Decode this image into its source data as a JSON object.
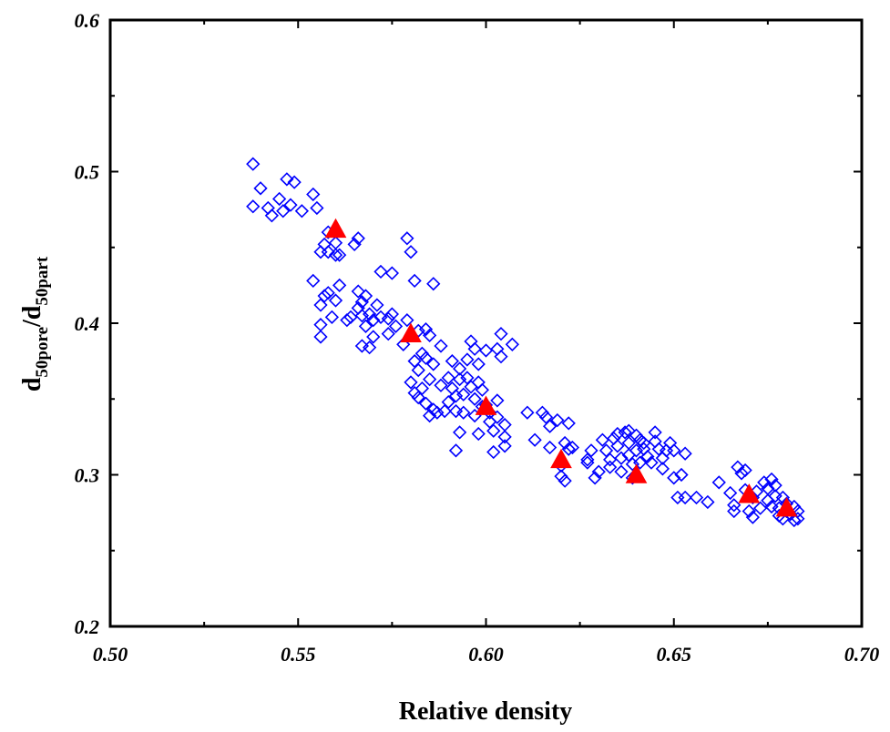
{
  "chart_data": {
    "type": "scatter",
    "xlabel": "Relative density",
    "ylabel": {
      "base1": "d",
      "sub1": "50pore",
      "sep": "/d",
      "sub2": "50part"
    },
    "xlim": [
      0.5,
      0.7
    ],
    "ylim": [
      0.2,
      0.6
    ],
    "xticks": [
      "0.50",
      "0.55",
      "0.60",
      "0.65",
      "0.70"
    ],
    "yticks": [
      "0.2",
      "0.3",
      "0.4",
      "0.5",
      "0.6"
    ],
    "grid": false,
    "series": [
      {
        "marker": "open-diamond",
        "color": "#0000ff",
        "points": [
          [
            0.538,
            0.505
          ],
          [
            0.538,
            0.477
          ],
          [
            0.54,
            0.489
          ],
          [
            0.542,
            0.476
          ],
          [
            0.543,
            0.471
          ],
          [
            0.545,
            0.482
          ],
          [
            0.546,
            0.474
          ],
          [
            0.547,
            0.495
          ],
          [
            0.548,
            0.478
          ],
          [
            0.549,
            0.493
          ],
          [
            0.551,
            0.474
          ],
          [
            0.554,
            0.485
          ],
          [
            0.555,
            0.476
          ],
          [
            0.554,
            0.428
          ],
          [
            0.556,
            0.447
          ],
          [
            0.557,
            0.452
          ],
          [
            0.558,
            0.46
          ],
          [
            0.557,
            0.418
          ],
          [
            0.556,
            0.412
          ],
          [
            0.558,
            0.42
          ],
          [
            0.559,
            0.404
          ],
          [
            0.556,
            0.399
          ],
          [
            0.556,
            0.391
          ],
          [
            0.558,
            0.447
          ],
          [
            0.56,
            0.445
          ],
          [
            0.56,
            0.453
          ],
          [
            0.561,
            0.425
          ],
          [
            0.56,
            0.415
          ],
          [
            0.561,
            0.445
          ],
          [
            0.565,
            0.452
          ],
          [
            0.566,
            0.456
          ],
          [
            0.563,
            0.402
          ],
          [
            0.564,
            0.404
          ],
          [
            0.566,
            0.421
          ],
          [
            0.567,
            0.414
          ],
          [
            0.566,
            0.41
          ],
          [
            0.568,
            0.418
          ],
          [
            0.567,
            0.405
          ],
          [
            0.569,
            0.406
          ],
          [
            0.57,
            0.402
          ],
          [
            0.568,
            0.398
          ],
          [
            0.567,
            0.385
          ],
          [
            0.569,
            0.384
          ],
          [
            0.57,
            0.391
          ],
          [
            0.572,
            0.404
          ],
          [
            0.571,
            0.412
          ],
          [
            0.572,
            0.434
          ],
          [
            0.575,
            0.433
          ],
          [
            0.574,
            0.403
          ],
          [
            0.575,
            0.406
          ],
          [
            0.576,
            0.398
          ],
          [
            0.574,
            0.393
          ],
          [
            0.578,
            0.386
          ],
          [
            0.579,
            0.456
          ],
          [
            0.58,
            0.447
          ],
          [
            0.581,
            0.428
          ],
          [
            0.579,
            0.402
          ],
          [
            0.58,
            0.392
          ],
          [
            0.582,
            0.395
          ],
          [
            0.583,
            0.38
          ],
          [
            0.581,
            0.375
          ],
          [
            0.582,
            0.369
          ],
          [
            0.58,
            0.361
          ],
          [
            0.581,
            0.354
          ],
          [
            0.582,
            0.351
          ],
          [
            0.583,
            0.357
          ],
          [
            0.584,
            0.396
          ],
          [
            0.585,
            0.392
          ],
          [
            0.586,
            0.426
          ],
          [
            0.584,
            0.377
          ],
          [
            0.586,
            0.373
          ],
          [
            0.585,
            0.363
          ],
          [
            0.584,
            0.347
          ],
          [
            0.586,
            0.343
          ],
          [
            0.587,
            0.341
          ],
          [
            0.585,
            0.339
          ],
          [
            0.588,
            0.385
          ],
          [
            0.588,
            0.359
          ],
          [
            0.589,
            0.342
          ],
          [
            0.59,
            0.364
          ],
          [
            0.59,
            0.348
          ],
          [
            0.591,
            0.375
          ],
          [
            0.591,
            0.357
          ],
          [
            0.592,
            0.352
          ],
          [
            0.592,
            0.342
          ],
          [
            0.593,
            0.37
          ],
          [
            0.593,
            0.363
          ],
          [
            0.594,
            0.353
          ],
          [
            0.593,
            0.328
          ],
          [
            0.592,
            0.316
          ],
          [
            0.594,
            0.341
          ],
          [
            0.595,
            0.376
          ],
          [
            0.595,
            0.364
          ],
          [
            0.596,
            0.388
          ],
          [
            0.597,
            0.383
          ],
          [
            0.596,
            0.358
          ],
          [
            0.597,
            0.35
          ],
          [
            0.598,
            0.373
          ],
          [
            0.598,
            0.361
          ],
          [
            0.599,
            0.356
          ],
          [
            0.597,
            0.339
          ],
          [
            0.598,
            0.327
          ],
          [
            0.599,
            0.345
          ],
          [
            0.6,
            0.382
          ],
          [
            0.6,
            0.346
          ],
          [
            0.601,
            0.341
          ],
          [
            0.601,
            0.335
          ],
          [
            0.602,
            0.329
          ],
          [
            0.602,
            0.315
          ],
          [
            0.603,
            0.349
          ],
          [
            0.603,
            0.338
          ],
          [
            0.603,
            0.383
          ],
          [
            0.604,
            0.393
          ],
          [
            0.604,
            0.378
          ],
          [
            0.605,
            0.319
          ],
          [
            0.605,
            0.325
          ],
          [
            0.605,
            0.333
          ],
          [
            0.607,
            0.386
          ],
          [
            0.611,
            0.341
          ],
          [
            0.613,
            0.323
          ],
          [
            0.615,
            0.341
          ],
          [
            0.616,
            0.338
          ],
          [
            0.617,
            0.332
          ],
          [
            0.617,
            0.318
          ],
          [
            0.619,
            0.336
          ],
          [
            0.62,
            0.299
          ],
          [
            0.62,
            0.306
          ],
          [
            0.621,
            0.296
          ],
          [
            0.621,
            0.321
          ],
          [
            0.622,
            0.317
          ],
          [
            0.622,
            0.334
          ],
          [
            0.623,
            0.318
          ],
          [
            0.627,
            0.31
          ],
          [
            0.627,
            0.308
          ],
          [
            0.628,
            0.316
          ],
          [
            0.629,
            0.298
          ],
          [
            0.63,
            0.302
          ],
          [
            0.631,
            0.323
          ],
          [
            0.632,
            0.316
          ],
          [
            0.633,
            0.31
          ],
          [
            0.633,
            0.305
          ],
          [
            0.634,
            0.324
          ],
          [
            0.635,
            0.327
          ],
          [
            0.635,
            0.319
          ],
          [
            0.636,
            0.311
          ],
          [
            0.636,
            0.302
          ],
          [
            0.637,
            0.328
          ],
          [
            0.638,
            0.329
          ],
          [
            0.638,
            0.321
          ],
          [
            0.638,
            0.313
          ],
          [
            0.639,
            0.307
          ],
          [
            0.639,
            0.298
          ],
          [
            0.64,
            0.326
          ],
          [
            0.64,
            0.316
          ],
          [
            0.641,
            0.323
          ],
          [
            0.641,
            0.308
          ],
          [
            0.642,
            0.321
          ],
          [
            0.642,
            0.317
          ],
          [
            0.643,
            0.312
          ],
          [
            0.644,
            0.308
          ],
          [
            0.645,
            0.328
          ],
          [
            0.645,
            0.322
          ],
          [
            0.646,
            0.317
          ],
          [
            0.647,
            0.311
          ],
          [
            0.647,
            0.304
          ],
          [
            0.648,
            0.316
          ],
          [
            0.649,
            0.321
          ],
          [
            0.65,
            0.316
          ],
          [
            0.65,
            0.298
          ],
          [
            0.651,
            0.285
          ],
          [
            0.652,
            0.3
          ],
          [
            0.653,
            0.285
          ],
          [
            0.653,
            0.314
          ],
          [
            0.656,
            0.285
          ],
          [
            0.659,
            0.282
          ],
          [
            0.662,
            0.295
          ],
          [
            0.665,
            0.288
          ],
          [
            0.666,
            0.28
          ],
          [
            0.666,
            0.276
          ],
          [
            0.667,
            0.305
          ],
          [
            0.668,
            0.301
          ],
          [
            0.669,
            0.303
          ],
          [
            0.669,
            0.29
          ],
          [
            0.67,
            0.276
          ],
          [
            0.671,
            0.272
          ],
          [
            0.671,
            0.285
          ],
          [
            0.672,
            0.289
          ],
          [
            0.673,
            0.278
          ],
          [
            0.674,
            0.295
          ],
          [
            0.675,
            0.291
          ],
          [
            0.675,
            0.283
          ],
          [
            0.676,
            0.279
          ],
          [
            0.676,
            0.297
          ],
          [
            0.677,
            0.293
          ],
          [
            0.677,
            0.286
          ],
          [
            0.678,
            0.278
          ],
          [
            0.678,
            0.273
          ],
          [
            0.679,
            0.285
          ],
          [
            0.679,
            0.271
          ],
          [
            0.68,
            0.281
          ],
          [
            0.68,
            0.276
          ],
          [
            0.681,
            0.274
          ],
          [
            0.682,
            0.279
          ],
          [
            0.682,
            0.27
          ],
          [
            0.683,
            0.276
          ],
          [
            0.683,
            0.271
          ]
        ]
      },
      {
        "marker": "filled-triangle",
        "color": "#ff0000",
        "points": [
          [
            0.56,
            0.462
          ],
          [
            0.58,
            0.393
          ],
          [
            0.6,
            0.345
          ],
          [
            0.62,
            0.31
          ],
          [
            0.64,
            0.3
          ],
          [
            0.67,
            0.287
          ],
          [
            0.68,
            0.278
          ]
        ]
      }
    ]
  }
}
